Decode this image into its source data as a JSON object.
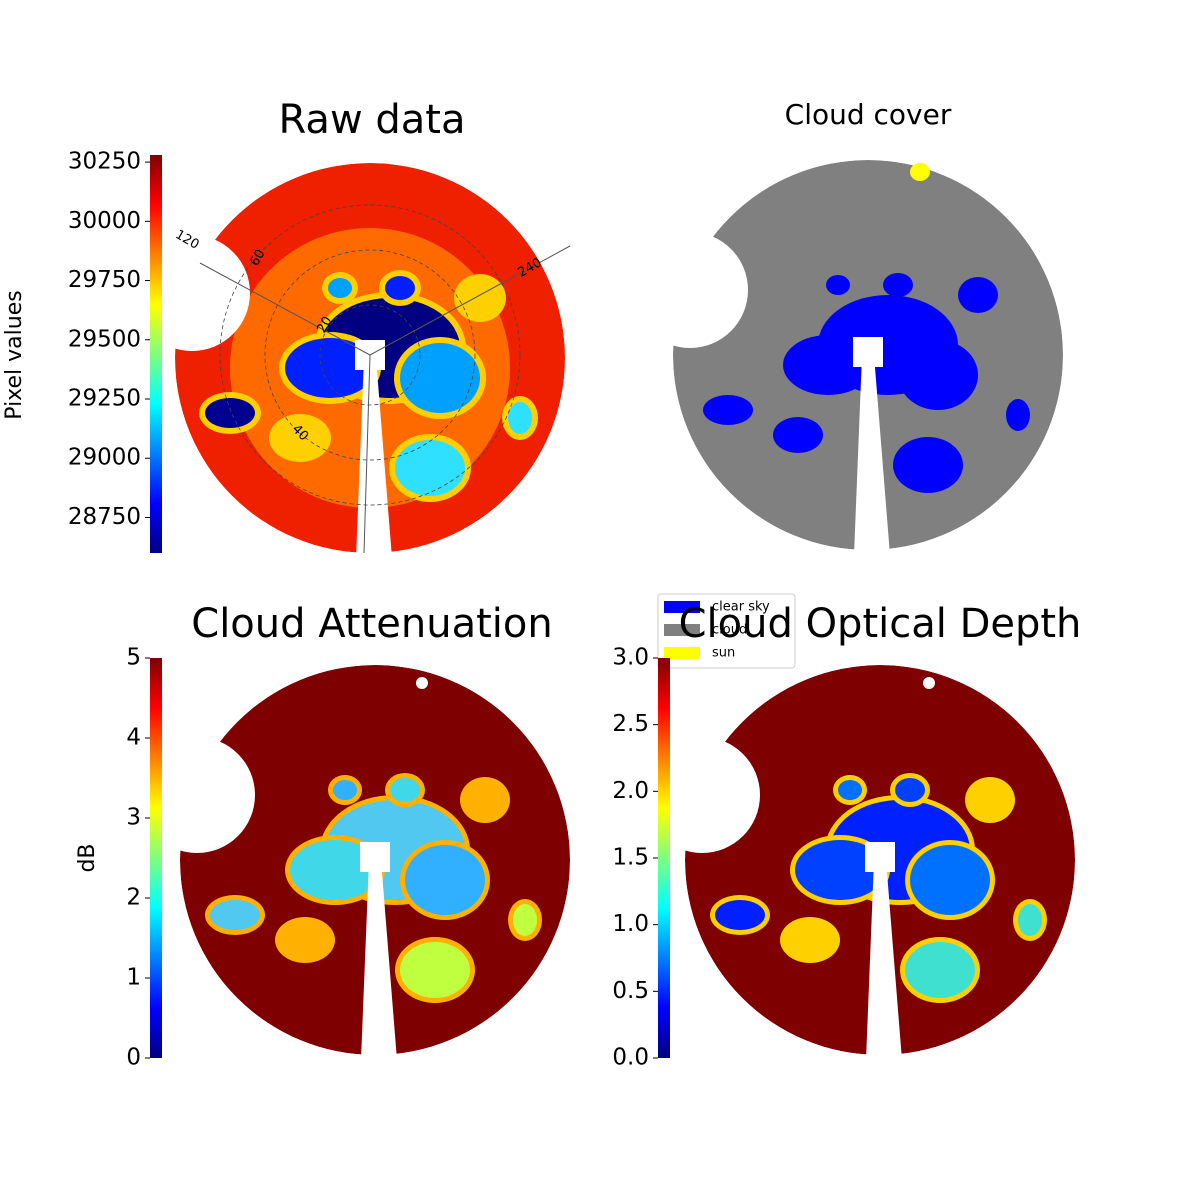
{
  "chart_data": [
    {
      "type": "image",
      "title": "Raw data",
      "polar_labels": [
        "120",
        "60",
        "240",
        "20",
        "40"
      ],
      "colorbar": {
        "label": "Pixel values",
        "colormap": "jet",
        "lim": [
          28600,
          30280
        ],
        "ticks": [
          28750,
          29000,
          29250,
          29500,
          29750,
          30000,
          30250
        ]
      }
    },
    {
      "type": "image",
      "title": "Cloud cover",
      "series": [
        {
          "name": "clear sky",
          "color": "#0000ff"
        },
        {
          "name": "cloud",
          "color": "#808080"
        },
        {
          "name": "sun",
          "color": "#ffff00"
        }
      ]
    },
    {
      "type": "image",
      "title": "Cloud Attenuation",
      "colorbar": {
        "label": "dB",
        "colormap": "jet",
        "lim": [
          0,
          5
        ],
        "ticks": [
          0,
          1,
          2,
          3,
          4,
          5
        ]
      }
    },
    {
      "type": "image",
      "title": "Cloud Optical Depth",
      "colorbar": {
        "colormap": "jet",
        "lim": [
          0,
          3
        ],
        "ticks": [
          {
            "value": 0,
            "label": "0.0"
          },
          {
            "value": 0.5,
            "label": "0.5"
          },
          {
            "value": 1,
            "label": "1.0"
          },
          {
            "value": 1.5,
            "label": "1.5"
          },
          {
            "value": 2,
            "label": "2.0"
          },
          {
            "value": 2.5,
            "label": "2.5"
          },
          {
            "value": 3,
            "label": "3.0"
          }
        ]
      }
    }
  ]
}
